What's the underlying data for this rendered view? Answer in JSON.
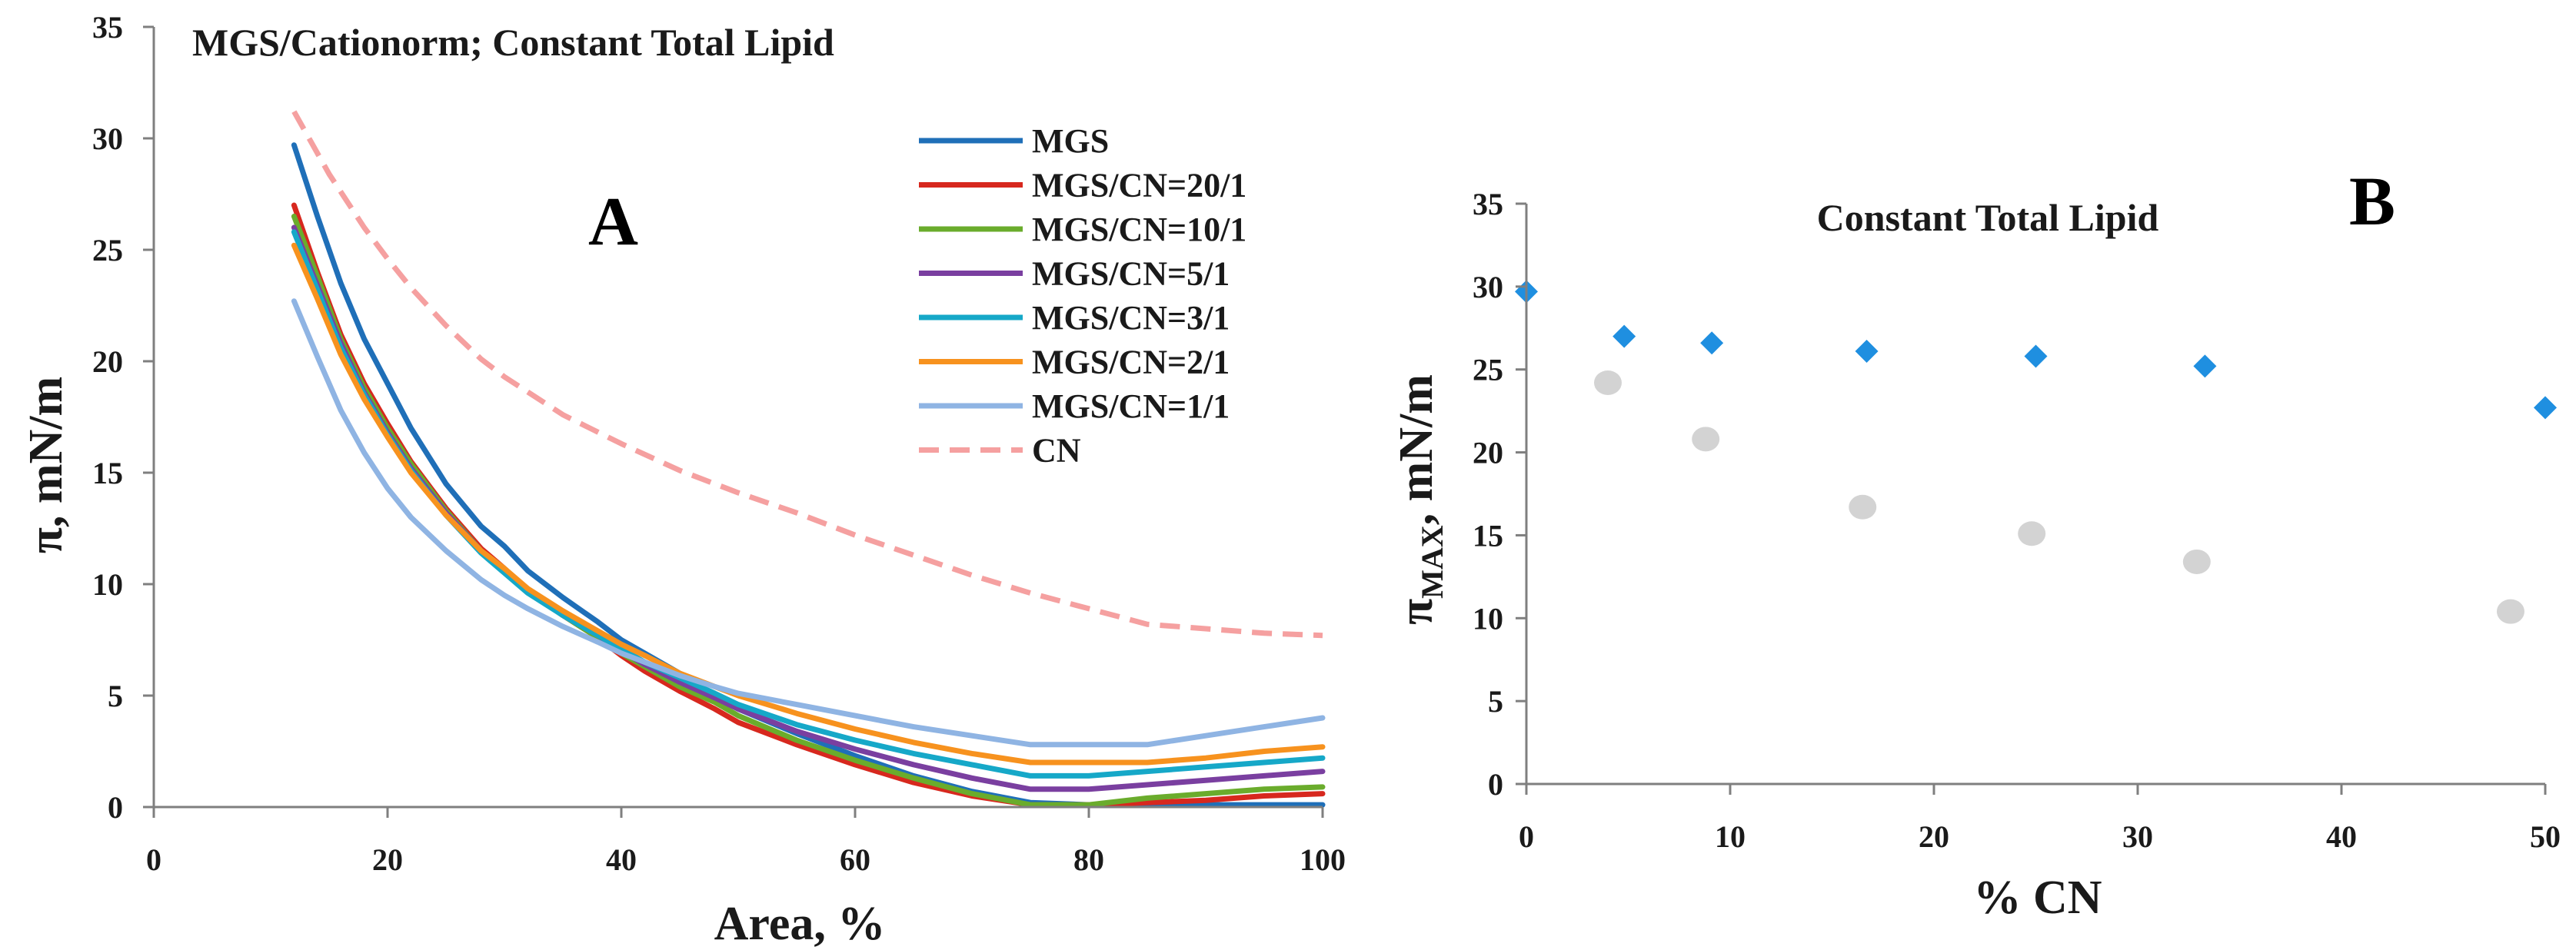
{
  "chart_data": [
    {
      "type": "line",
      "panel_label": "A",
      "title": "MGS/Cationorm; Constant Total Lipid",
      "xlabel": "Area, %",
      "ylabel": "π, mN/m",
      "xlim": [
        0,
        100
      ],
      "ylim": [
        0,
        35
      ],
      "xticks": [
        0,
        20,
        40,
        60,
        80,
        100
      ],
      "yticks": [
        0,
        5,
        10,
        15,
        20,
        25,
        30,
        35
      ],
      "grid": false,
      "legend_position": "top-right",
      "series": [
        {
          "name": "MGS",
          "color": "#1f6fb8",
          "dash": false,
          "x": [
            12,
            14,
            16,
            18,
            20,
            22,
            25,
            28,
            30,
            32,
            35,
            38,
            40,
            42,
            45,
            48,
            50,
            55,
            60,
            65,
            70,
            75,
            80,
            85,
            90,
            95,
            100
          ],
          "y": [
            29.7,
            26.5,
            23.5,
            21,
            19,
            17,
            14.5,
            12.6,
            11.7,
            10.6,
            9.4,
            8.3,
            7.5,
            6.9,
            6,
            5,
            4.4,
            3.3,
            2.3,
            1.4,
            0.7,
            0.2,
            0.1,
            0.1,
            0.1,
            0.1,
            0.1
          ]
        },
        {
          "name": "MGS/CN=20/1",
          "color": "#d7281e",
          "dash": false,
          "x": [
            12,
            14,
            16,
            18,
            20,
            22,
            25,
            28,
            30,
            32,
            35,
            38,
            40,
            42,
            45,
            48,
            50,
            55,
            60,
            65,
            70,
            75,
            80,
            85,
            90,
            95,
            100
          ],
          "y": [
            27,
            24,
            21.2,
            19,
            17.2,
            15.5,
            13.4,
            11.6,
            10.7,
            9.7,
            8.6,
            7.6,
            6.8,
            6.1,
            5.2,
            4.4,
            3.8,
            2.8,
            1.9,
            1.1,
            0.5,
            0.1,
            0.1,
            0.2,
            0.3,
            0.5,
            0.6
          ]
        },
        {
          "name": "MGS/CN=10/1",
          "color": "#6aac2c",
          "dash": false,
          "x": [
            12,
            14,
            16,
            18,
            20,
            22,
            25,
            28,
            30,
            32,
            35,
            38,
            40,
            42,
            45,
            48,
            50,
            55,
            60,
            65,
            70,
            75,
            80,
            85,
            90,
            95,
            100
          ],
          "y": [
            26.5,
            23.8,
            21,
            18.8,
            17,
            15.4,
            13.3,
            11.5,
            10.6,
            9.7,
            8.6,
            7.6,
            6.9,
            6.3,
            5.4,
            4.7,
            4.1,
            3,
            2.1,
            1.3,
            0.6,
            0.1,
            0.1,
            0.4,
            0.6,
            0.8,
            0.9
          ]
        },
        {
          "name": "MGS/CN=5/1",
          "color": "#7a3fa0",
          "dash": false,
          "x": [
            12,
            14,
            16,
            18,
            20,
            22,
            25,
            28,
            30,
            32,
            35,
            38,
            40,
            42,
            45,
            48,
            50,
            55,
            60,
            65,
            70,
            75,
            80,
            85,
            90,
            95,
            100
          ],
          "y": [
            26,
            23.4,
            20.8,
            18.6,
            16.8,
            15.2,
            13.2,
            11.5,
            10.6,
            9.7,
            8.6,
            7.7,
            7,
            6.4,
            5.6,
            4.9,
            4.4,
            3.4,
            2.6,
            1.9,
            1.3,
            0.8,
            0.8,
            1,
            1.2,
            1.4,
            1.6
          ]
        },
        {
          "name": "MGS/CN=3/1",
          "color": "#16a8c8",
          "dash": false,
          "x": [
            12,
            14,
            16,
            18,
            20,
            22,
            25,
            28,
            30,
            32,
            35,
            38,
            40,
            42,
            45,
            48,
            50,
            55,
            60,
            65,
            70,
            75,
            80,
            85,
            90,
            95,
            100
          ],
          "y": [
            25.8,
            23.2,
            20.6,
            18.5,
            16.7,
            15.1,
            13.1,
            11.4,
            10.5,
            9.6,
            8.6,
            7.7,
            7.1,
            6.5,
            5.8,
            5.1,
            4.6,
            3.7,
            3,
            2.4,
            1.9,
            1.4,
            1.4,
            1.6,
            1.8,
            2,
            2.2
          ]
        },
        {
          "name": "MGS/CN=2/1",
          "color": "#f7921e",
          "dash": false,
          "x": [
            12,
            14,
            16,
            18,
            20,
            22,
            25,
            28,
            30,
            32,
            35,
            38,
            40,
            42,
            45,
            48,
            50,
            55,
            60,
            65,
            70,
            75,
            80,
            85,
            90,
            95,
            100
          ],
          "y": [
            25.2,
            22.8,
            20.3,
            18.3,
            16.6,
            15,
            13.1,
            11.5,
            10.7,
            9.8,
            8.8,
            7.9,
            7.3,
            6.8,
            6,
            5.4,
            5,
            4.2,
            3.5,
            2.9,
            2.4,
            2,
            2,
            2,
            2.2,
            2.5,
            2.7
          ]
        },
        {
          "name": "MGS/CN=1/1",
          "color": "#8fb4e3",
          "dash": false,
          "x": [
            12,
            14,
            16,
            18,
            20,
            22,
            25,
            28,
            30,
            32,
            35,
            38,
            40,
            42,
            45,
            48,
            50,
            55,
            60,
            65,
            70,
            75,
            80,
            85,
            90,
            95,
            100
          ],
          "y": [
            22.7,
            20.2,
            17.8,
            15.9,
            14.3,
            13,
            11.5,
            10.2,
            9.5,
            8.9,
            8.1,
            7.4,
            6.9,
            6.5,
            5.9,
            5.4,
            5.1,
            4.6,
            4.1,
            3.6,
            3.2,
            2.8,
            2.8,
            2.8,
            3.2,
            3.6,
            4
          ]
        },
        {
          "name": "CN",
          "color": "#f5a0a0",
          "dash": true,
          "x": [
            12,
            15,
            18,
            20,
            22,
            25,
            28,
            30,
            35,
            40,
            45,
            50,
            55,
            60,
            65,
            70,
            75,
            80,
            85,
            90,
            95,
            100
          ],
          "y": [
            31.2,
            28.4,
            26,
            24.6,
            23.3,
            21.6,
            20.1,
            19.3,
            17.6,
            16.3,
            15.1,
            14.1,
            13.2,
            12.2,
            11.3,
            10.4,
            9.6,
            8.9,
            8.2,
            8.0,
            7.8,
            7.7
          ]
        }
      ]
    },
    {
      "type": "scatter",
      "panel_label": "B",
      "title": "Constant Total Lipid",
      "xlabel": "% CN",
      "ylabel": "πMAX, mN/m",
      "ylabel_main": "π",
      "ylabel_sub": "MAX",
      "ylabel_rest": ", mN/m",
      "xlim": [
        0,
        50
      ],
      "ylim": [
        0,
        35
      ],
      "xticks": [
        0,
        10,
        20,
        30,
        40,
        50
      ],
      "yticks": [
        0,
        5,
        10,
        15,
        20,
        25,
        30,
        35
      ],
      "grid": false,
      "series": [
        {
          "marker": "diamond",
          "color": "#1f8fe0",
          "x": [
            0,
            4.8,
            9.1,
            16.7,
            25,
            33.3,
            50
          ],
          "y": [
            29.7,
            27,
            26.6,
            26.1,
            25.8,
            25.2,
            22.7
          ]
        },
        {
          "marker": "circle",
          "color": "#d3d3d3",
          "x": [
            4,
            8.8,
            16.5,
            24.8,
            32.9,
            48.3
          ],
          "y": [
            24.2,
            20.8,
            16.7,
            15.1,
            13.4,
            10.4
          ]
        }
      ]
    }
  ]
}
